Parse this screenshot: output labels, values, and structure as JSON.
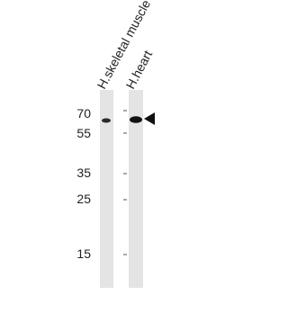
{
  "lanes": [
    "H.skeletal muscle",
    "H.heart"
  ],
  "markers": [
    70,
    55,
    35,
    25,
    15
  ]
}
